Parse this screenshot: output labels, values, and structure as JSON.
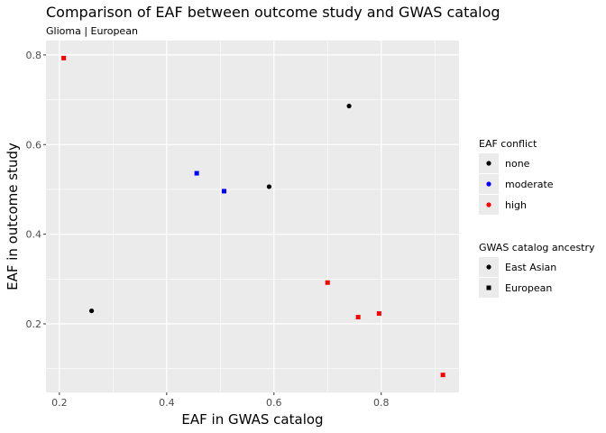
{
  "chart_data": {
    "type": "scatter",
    "title": "Comparison of EAF between outcome study and GWAS catalog",
    "subtitle": "Glioma | European",
    "xlabel": "EAF in GWAS catalog",
    "ylabel": "EAF in outcome study",
    "xlim": [
      0.175,
      0.945
    ],
    "ylim": [
      0.047,
      0.832
    ],
    "x_ticks": [
      0.2,
      0.4,
      0.6,
      0.8
    ],
    "y_ticks": [
      0.2,
      0.4,
      0.6,
      0.8
    ],
    "x_tick_labels": [
      "0.2",
      "0.4",
      "0.6",
      "0.8"
    ],
    "y_tick_labels": [
      "0.2",
      "0.4",
      "0.6",
      "0.8"
    ],
    "grid": true,
    "legend_position": "right",
    "colors": {
      "none": "#000000",
      "moderate": "#0000FF",
      "high": "#FF0000"
    },
    "legends": [
      {
        "title": "EAF conflict",
        "entries": [
          {
            "label": "none",
            "color": "#000000",
            "shape": "circle"
          },
          {
            "label": "moderate",
            "color": "#0000FF",
            "shape": "circle"
          },
          {
            "label": "high",
            "color": "#FF0000",
            "shape": "circle"
          }
        ]
      },
      {
        "title": "GWAS catalog ancestry",
        "entries": [
          {
            "label": "East Asian",
            "color": "#000000",
            "shape": "circle"
          },
          {
            "label": "European",
            "color": "#000000",
            "shape": "square"
          }
        ]
      }
    ],
    "points": [
      {
        "x": 0.208,
        "y": 0.793,
        "conflict": "high",
        "ancestry": "European"
      },
      {
        "x": 0.74,
        "y": 0.686,
        "conflict": "none",
        "ancestry": "East Asian"
      },
      {
        "x": 0.456,
        "y": 0.536,
        "conflict": "moderate",
        "ancestry": "European"
      },
      {
        "x": 0.507,
        "y": 0.496,
        "conflict": "moderate",
        "ancestry": "European"
      },
      {
        "x": 0.591,
        "y": 0.506,
        "conflict": "none",
        "ancestry": "East Asian"
      },
      {
        "x": 0.26,
        "y": 0.229,
        "conflict": "none",
        "ancestry": "East Asian"
      },
      {
        "x": 0.7,
        "y": 0.292,
        "conflict": "high",
        "ancestry": "European"
      },
      {
        "x": 0.757,
        "y": 0.215,
        "conflict": "high",
        "ancestry": "European"
      },
      {
        "x": 0.796,
        "y": 0.223,
        "conflict": "high",
        "ancestry": "European"
      },
      {
        "x": 0.915,
        "y": 0.086,
        "conflict": "high",
        "ancestry": "European"
      }
    ]
  }
}
